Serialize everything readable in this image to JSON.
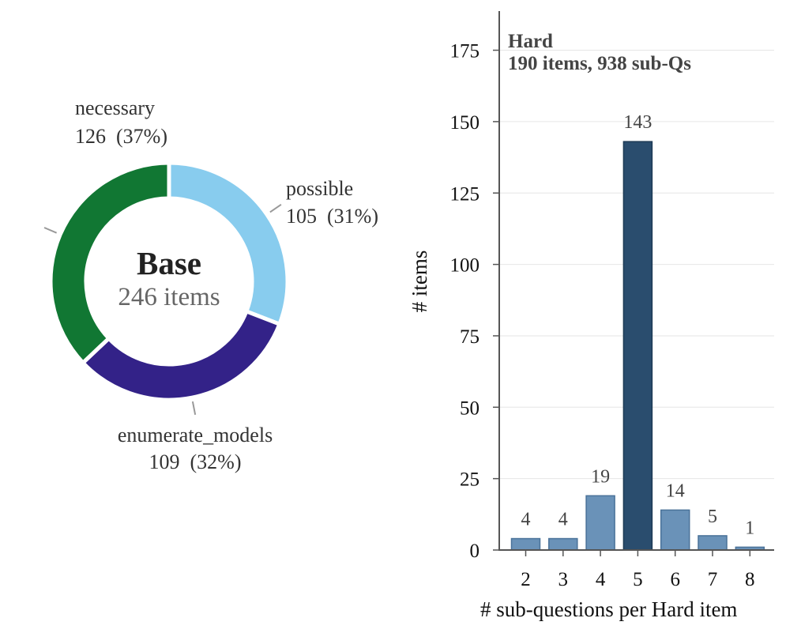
{
  "chart_data": [
    {
      "type": "pie",
      "center_title": "Base",
      "center_subtitle": "246 items",
      "slices": [
        {
          "label": "possible",
          "value": 105,
          "value_text": "105  (31%)",
          "color": "#88ccee"
        },
        {
          "label": "enumerate_models",
          "value": 109,
          "value_text": "109  (32%)",
          "color": "#332288"
        },
        {
          "label": "necessary",
          "value": 126,
          "value_text": "126  (37%)",
          "color": "#117733"
        }
      ]
    },
    {
      "type": "bar",
      "annotation_title": "Hard",
      "annotation_subtitle": "190 items, 938 sub-Qs",
      "xlabel": "# sub-questions per Hard item",
      "ylabel": "# items",
      "categories": [
        "2",
        "3",
        "4",
        "5",
        "6",
        "7",
        "8"
      ],
      "values": [
        4,
        4,
        19,
        143,
        14,
        5,
        1
      ],
      "highlight_category": "5",
      "bar_color": "#6a92b8",
      "highlight_color": "#2a4d6e",
      "ylim": [
        0,
        190
      ],
      "yticks": [
        0,
        25,
        50,
        75,
        100,
        125,
        150,
        175
      ],
      "grid": true
    }
  ]
}
